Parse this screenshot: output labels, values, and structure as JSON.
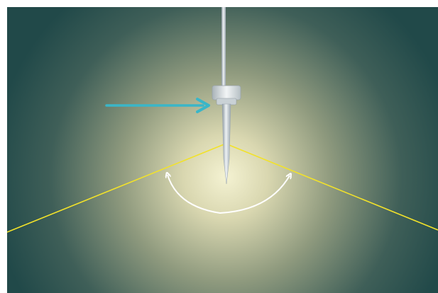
{
  "image": {
    "subject": "vertical-probe-with-angle-indicator",
    "colors": {
      "background_center": "#f4f2d2",
      "background_edge": "#214949",
      "boundary_line": "#f2e22a",
      "arrow": "#3ab6c8",
      "rotation_arc": "#ffffff",
      "probe_light": "#eef2f4",
      "probe_mid": "#b8c2c8",
      "probe_dark": "#8a969e"
    }
  }
}
